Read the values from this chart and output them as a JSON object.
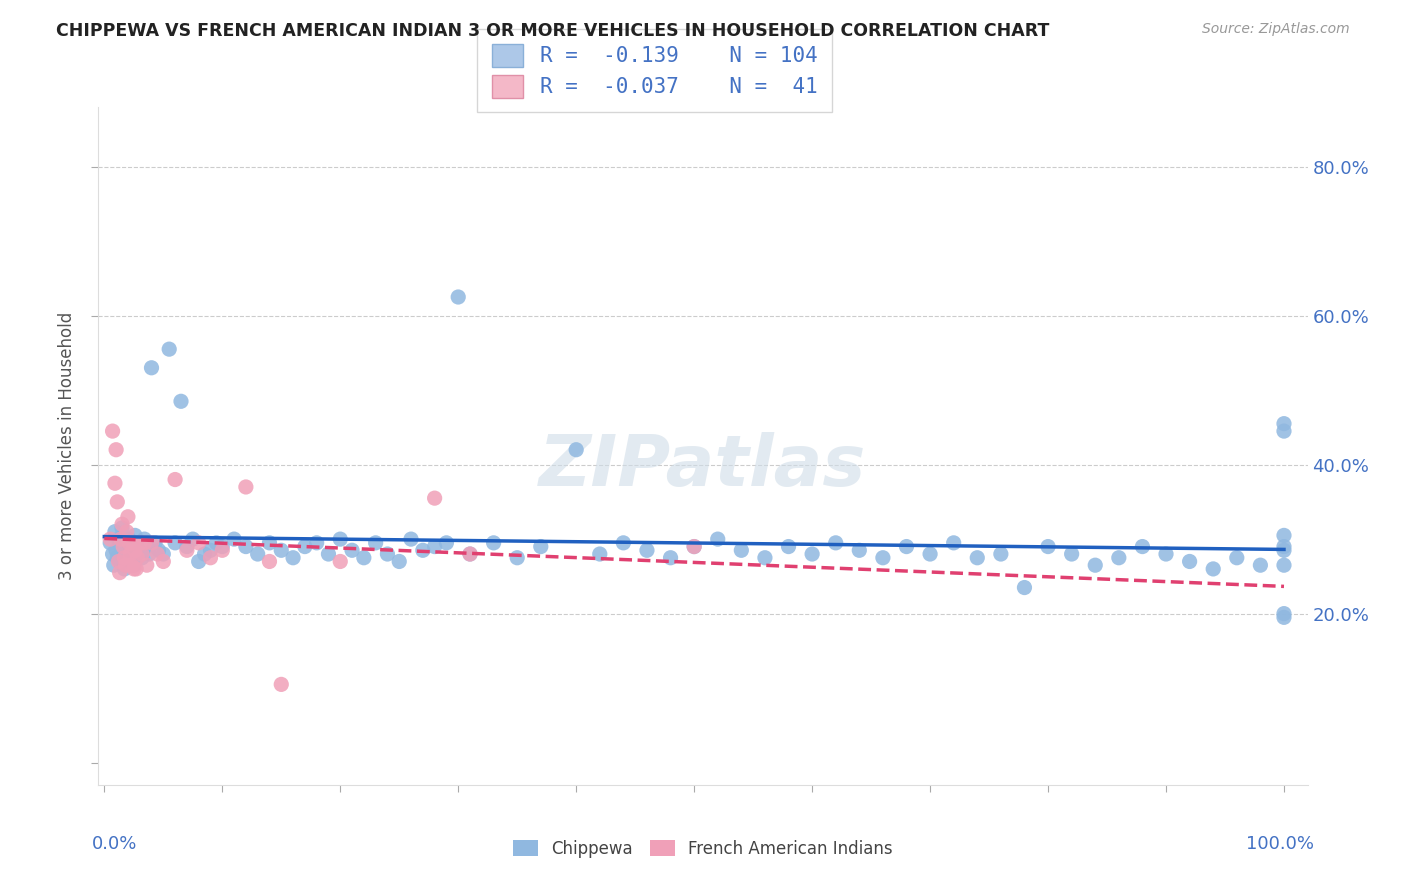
{
  "title": "CHIPPEWA VS FRENCH AMERICAN INDIAN 3 OR MORE VEHICLES IN HOUSEHOLD CORRELATION CHART",
  "source": "Source: ZipAtlas.com",
  "ylabel": "3 or more Vehicles in Household",
  "legend_entries": [
    {
      "color": "#adc8e8",
      "border": "#8ab0d8",
      "R": "-0.139",
      "N": "104"
    },
    {
      "color": "#f4b8c8",
      "border": "#e090a8",
      "R": "-0.037",
      "N": "41"
    }
  ],
  "legend_labels": [
    "Chippewa",
    "French American Indians"
  ],
  "chippewa_color": "#90b8e0",
  "french_color": "#f0a0b8",
  "chippewa_line_color": "#2060c0",
  "french_line_color": "#e04070",
  "background_color": "#ffffff",
  "watermark_color": "#d0dde8",
  "ytick_positions": [
    0.0,
    0.2,
    0.4,
    0.6,
    0.8
  ],
  "ytick_labels": [
    "",
    "20.0%",
    "40.0%",
    "60.0%",
    "80.0%"
  ],
  "chippewa_x": [
    0.005,
    0.007,
    0.008,
    0.009,
    0.01,
    0.011,
    0.012,
    0.013,
    0.014,
    0.015,
    0.016,
    0.017,
    0.018,
    0.019,
    0.02,
    0.021,
    0.022,
    0.023,
    0.024,
    0.025,
    0.026,
    0.027,
    0.028,
    0.03,
    0.032,
    0.034,
    0.036,
    0.038,
    0.04,
    0.043,
    0.046,
    0.05,
    0.055,
    0.06,
    0.065,
    0.07,
    0.075,
    0.08,
    0.085,
    0.09,
    0.095,
    0.1,
    0.11,
    0.12,
    0.13,
    0.14,
    0.15,
    0.16,
    0.17,
    0.18,
    0.19,
    0.2,
    0.21,
    0.22,
    0.23,
    0.24,
    0.25,
    0.26,
    0.27,
    0.28,
    0.29,
    0.3,
    0.31,
    0.33,
    0.35,
    0.37,
    0.4,
    0.42,
    0.44,
    0.46,
    0.48,
    0.5,
    0.52,
    0.54,
    0.56,
    0.58,
    0.6,
    0.62,
    0.64,
    0.66,
    0.68,
    0.7,
    0.72,
    0.74,
    0.76,
    0.78,
    0.8,
    0.82,
    0.84,
    0.86,
    0.88,
    0.9,
    0.92,
    0.94,
    0.96,
    0.98,
    1.0,
    1.0,
    1.0,
    1.0,
    1.0,
    1.0,
    1.0,
    1.0
  ],
  "chippewa_y": [
    0.295,
    0.28,
    0.265,
    0.31,
    0.285,
    0.275,
    0.3,
    0.27,
    0.29,
    0.315,
    0.285,
    0.26,
    0.295,
    0.28,
    0.27,
    0.3,
    0.285,
    0.275,
    0.29,
    0.265,
    0.305,
    0.28,
    0.295,
    0.285,
    0.275,
    0.3,
    0.29,
    0.28,
    0.53,
    0.295,
    0.285,
    0.28,
    0.555,
    0.295,
    0.485,
    0.29,
    0.3,
    0.27,
    0.28,
    0.285,
    0.295,
    0.29,
    0.3,
    0.29,
    0.28,
    0.295,
    0.285,
    0.275,
    0.29,
    0.295,
    0.28,
    0.3,
    0.285,
    0.275,
    0.295,
    0.28,
    0.27,
    0.3,
    0.285,
    0.29,
    0.295,
    0.625,
    0.28,
    0.295,
    0.275,
    0.29,
    0.42,
    0.28,
    0.295,
    0.285,
    0.275,
    0.29,
    0.3,
    0.285,
    0.275,
    0.29,
    0.28,
    0.295,
    0.285,
    0.275,
    0.29,
    0.28,
    0.295,
    0.275,
    0.28,
    0.235,
    0.29,
    0.28,
    0.265,
    0.275,
    0.29,
    0.28,
    0.27,
    0.26,
    0.275,
    0.265,
    0.29,
    0.455,
    0.445,
    0.305,
    0.285,
    0.195,
    0.265,
    0.2
  ],
  "french_x": [
    0.005,
    0.007,
    0.009,
    0.01,
    0.011,
    0.012,
    0.013,
    0.014,
    0.015,
    0.016,
    0.017,
    0.018,
    0.019,
    0.02,
    0.021,
    0.022,
    0.023,
    0.024,
    0.025,
    0.026,
    0.027,
    0.028,
    0.03,
    0.032,
    0.034,
    0.036,
    0.04,
    0.045,
    0.05,
    0.06,
    0.07,
    0.08,
    0.09,
    0.1,
    0.12,
    0.14,
    0.15,
    0.2,
    0.28,
    0.31,
    0.5
  ],
  "french_y": [
    0.3,
    0.445,
    0.375,
    0.42,
    0.35,
    0.27,
    0.255,
    0.3,
    0.32,
    0.29,
    0.275,
    0.265,
    0.31,
    0.33,
    0.295,
    0.28,
    0.265,
    0.295,
    0.26,
    0.285,
    0.26,
    0.275,
    0.295,
    0.28,
    0.295,
    0.265,
    0.295,
    0.28,
    0.27,
    0.38,
    0.285,
    0.295,
    0.275,
    0.285,
    0.37,
    0.27,
    0.105,
    0.27,
    0.355,
    0.28,
    0.29
  ]
}
